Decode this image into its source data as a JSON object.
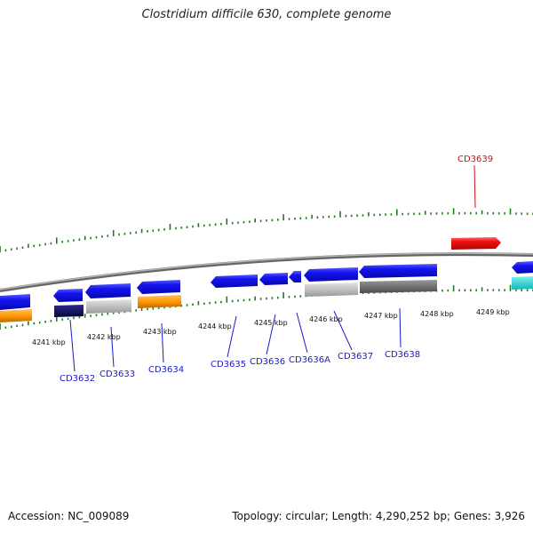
{
  "title": "Clostridium difficile 630, complete genome",
  "footer": {
    "accession": "Accession: NC_009089",
    "summary": "Topology: circular; Length: 4,290,252 bp; Genes: 3,926"
  },
  "kbp_labels": [
    "4241 kbp",
    "4242 kbp",
    "4243 kbp",
    "4244 kbp",
    "4245 kbp",
    "4246 kbp",
    "4247 kbp",
    "4248 kbp",
    "4249 kbp"
  ],
  "gene_labels": [
    "CD3632",
    "CD3633",
    "CD3634",
    "CD3635",
    "CD3636",
    "CD3636A",
    "CD3637",
    "CD3638",
    "CD3639"
  ],
  "colors": {
    "backbone": "#8a8a8a",
    "ticks": "#1f7a1f",
    "gene_blue": "#1010ee",
    "gene_red": "#ee1111",
    "gene_cyan": "#11cccc",
    "orange": "#ff9900",
    "navy": "#0a0a6a",
    "light_gray": "#c4c4c4",
    "dark_gray": "#777777",
    "label_blue": "#1a1acc",
    "label_red": "#cc1111"
  }
}
